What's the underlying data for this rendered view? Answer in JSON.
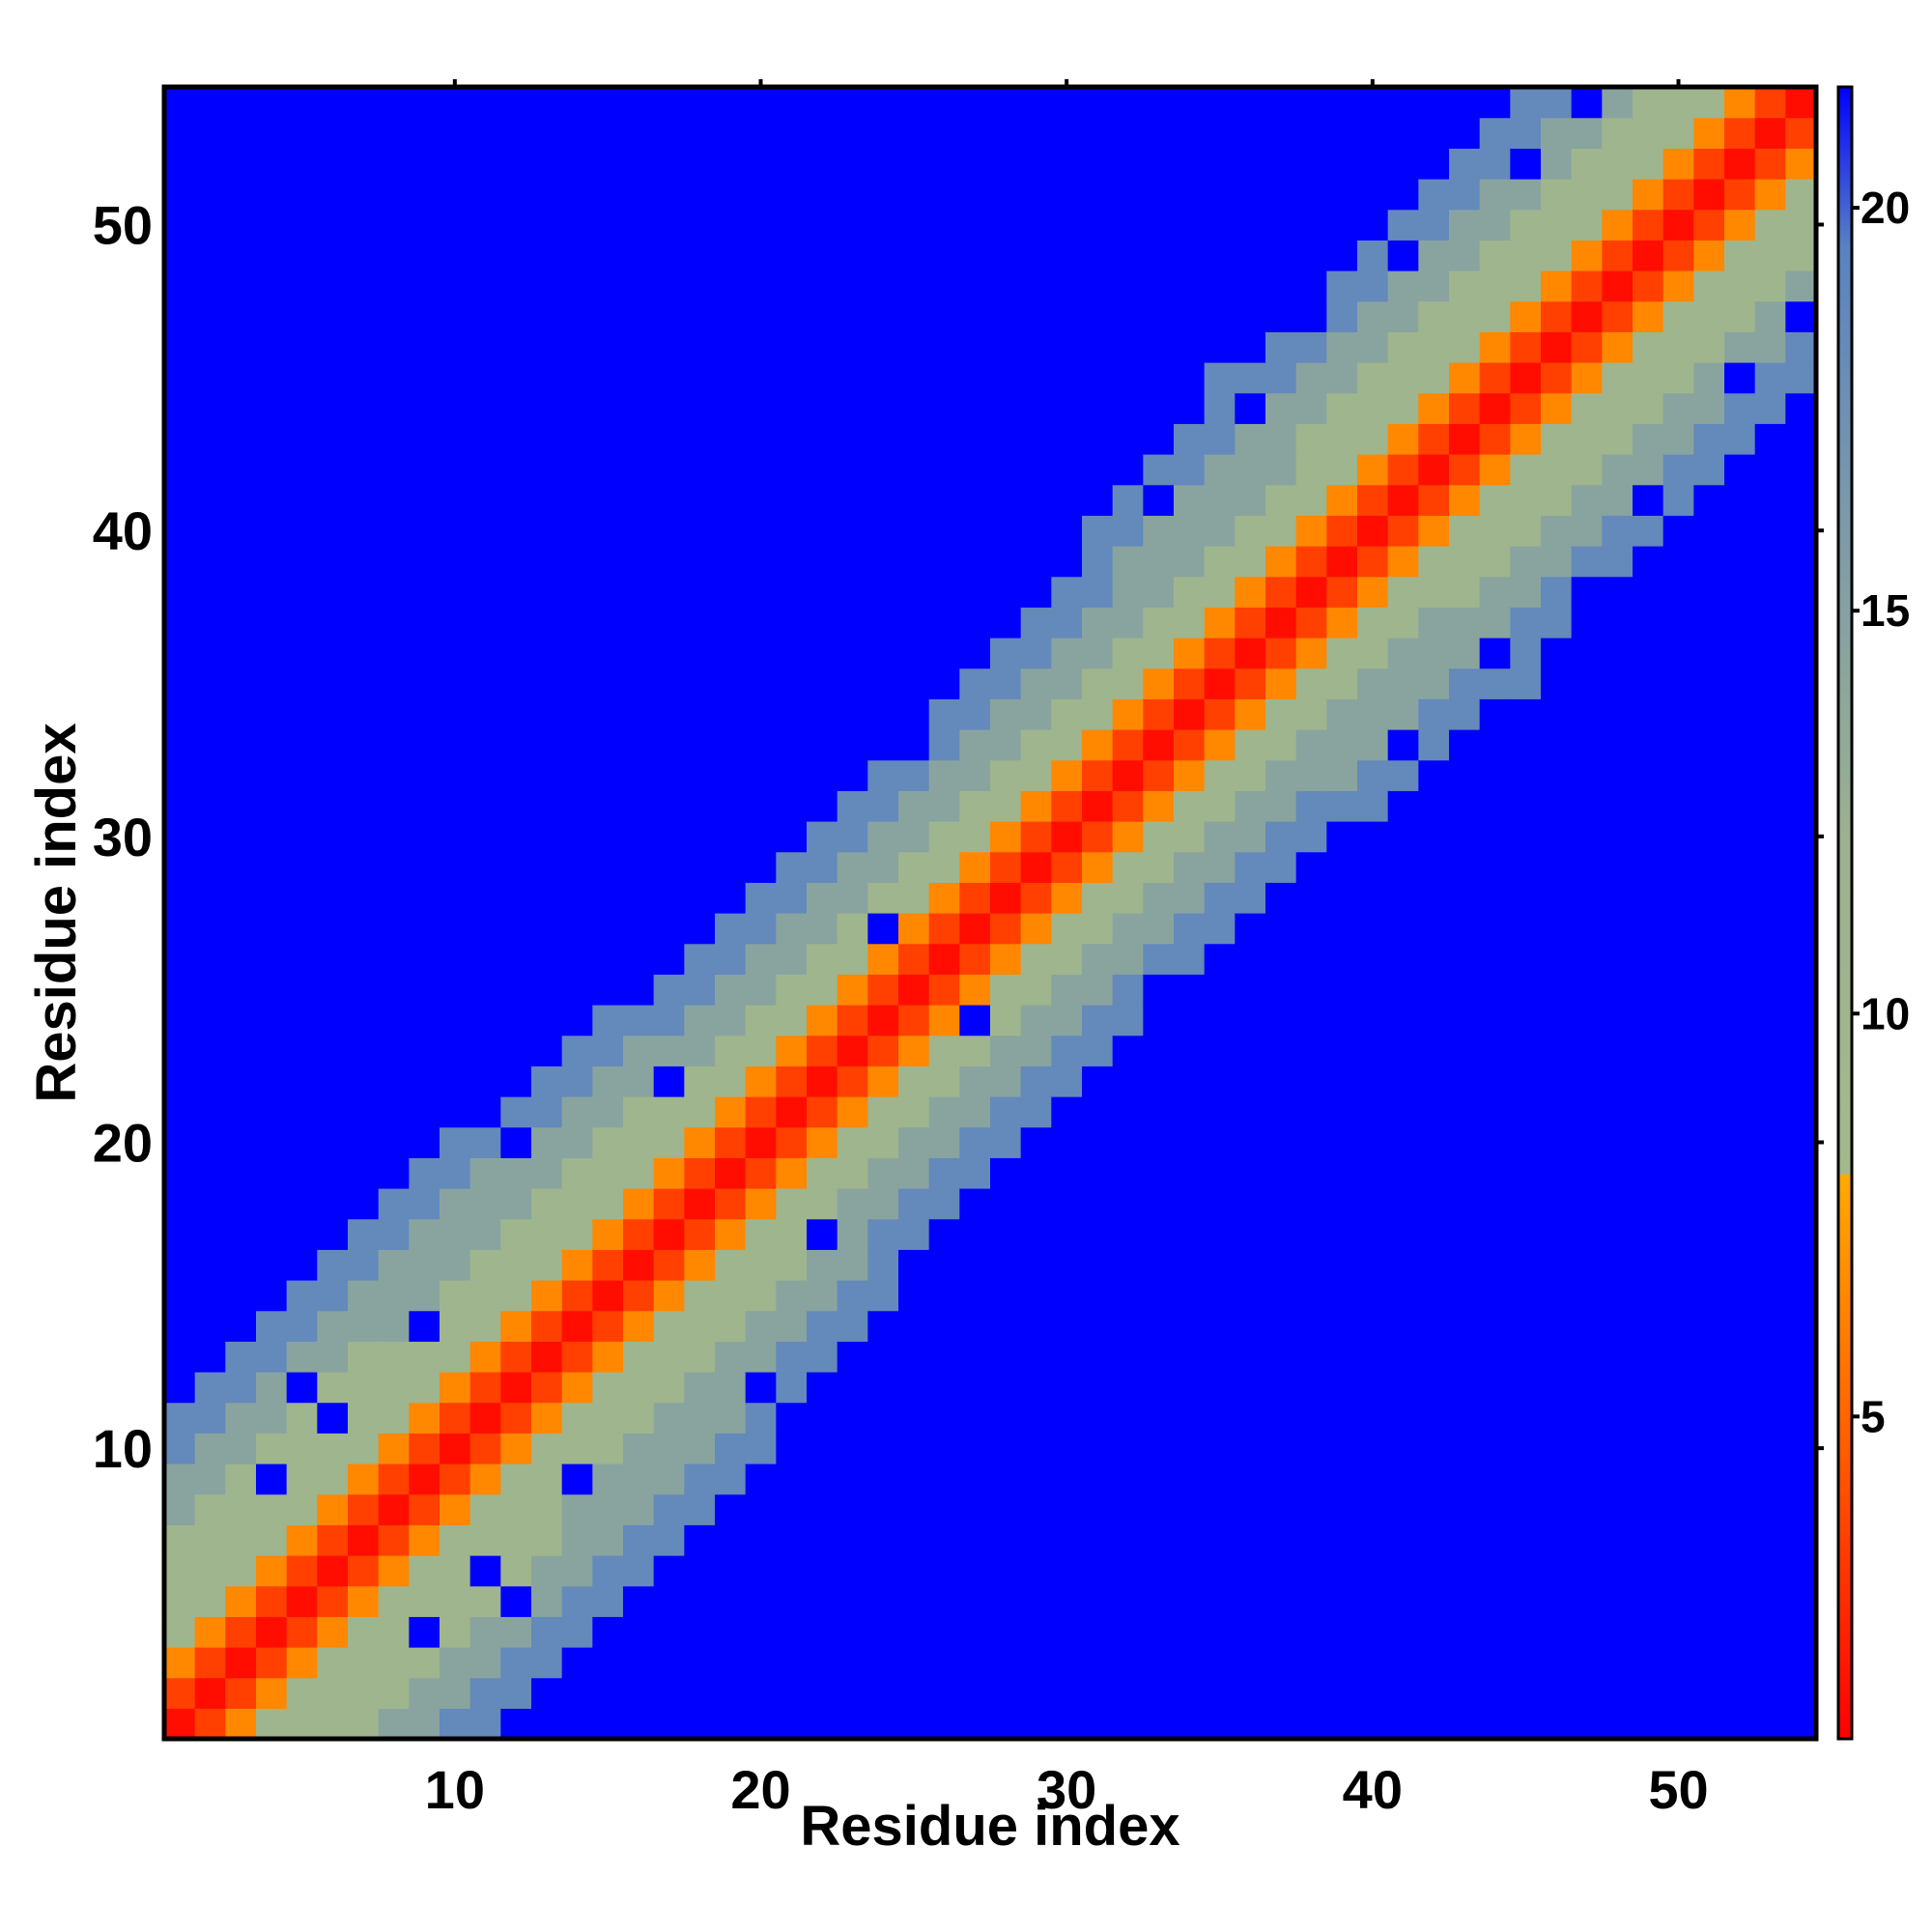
{
  "chart_data": {
    "type": "heatmap",
    "title": "",
    "xlabel": "Residue index",
    "ylabel": "Residue index",
    "n_residues": 54,
    "xlim": [
      0.5,
      54.5
    ],
    "ylim": [
      0.5,
      54.5
    ],
    "xticks": [
      10,
      20,
      30,
      40,
      50
    ],
    "yticks": [
      10,
      20,
      30,
      40,
      50
    ],
    "grid": false,
    "legend": "colorbar-right",
    "colorbar": {
      "range": [
        1,
        21.5
      ],
      "ticks": [
        5,
        10,
        15,
        20
      ],
      "stops": [
        {
          "value": 1,
          "color": "#ff0000"
        },
        {
          "value": 4.5,
          "color": "#ff5a00"
        },
        {
          "value": 8,
          "color": "#ffaa00"
        },
        {
          "value": 8.01,
          "color": "#a3b98c"
        },
        {
          "value": 12,
          "color": "#9db28f"
        },
        {
          "value": 16,
          "color": "#7d9ba8"
        },
        {
          "value": 19.5,
          "color": "#5a82c2"
        },
        {
          "value": 21.5,
          "color": "#0000ff"
        }
      ]
    },
    "cell_value_bands": {
      "distance_0": 1.5,
      "distance_1": 3.5,
      "distance_2": 6.5,
      "near_band": 10.5,
      "mid_band": 14.5,
      "outer_band": 18.5,
      "far": 21.5
    },
    "band_halfwidths_by_residue": [
      [
        1,
        6,
        8,
        10
      ],
      [
        10,
        6,
        9,
        11
      ],
      [
        20,
        5,
        7,
        9
      ],
      [
        30,
        4,
        6,
        8
      ],
      [
        40,
        5,
        8,
        10
      ],
      [
        54,
        5,
        7,
        9
      ]
    ],
    "far_holes": [
      [
        4,
        9
      ],
      [
        9,
        4
      ],
      [
        6,
        11
      ],
      [
        11,
        6
      ],
      [
        12,
        5
      ],
      [
        5,
        12
      ],
      [
        9,
        14
      ],
      [
        14,
        9
      ],
      [
        12,
        20
      ],
      [
        20,
        12
      ],
      [
        17,
        22
      ],
      [
        22,
        17
      ],
      [
        24,
        27
      ],
      [
        27,
        24
      ],
      [
        25,
        33
      ],
      [
        33,
        25
      ],
      [
        29,
        38
      ],
      [
        38,
        29
      ],
      [
        33,
        41
      ],
      [
        41,
        33
      ],
      [
        36,
        44
      ],
      [
        44,
        36
      ],
      [
        38,
        47
      ],
      [
        47,
        38
      ],
      [
        41,
        49
      ],
      [
        49,
        41
      ],
      [
        45,
        52
      ],
      [
        52,
        45
      ],
      [
        40,
        51
      ],
      [
        51,
        40
      ],
      [
        43,
        53
      ],
      [
        53,
        43
      ],
      [
        47,
        54
      ],
      [
        54,
        47
      ]
    ]
  }
}
